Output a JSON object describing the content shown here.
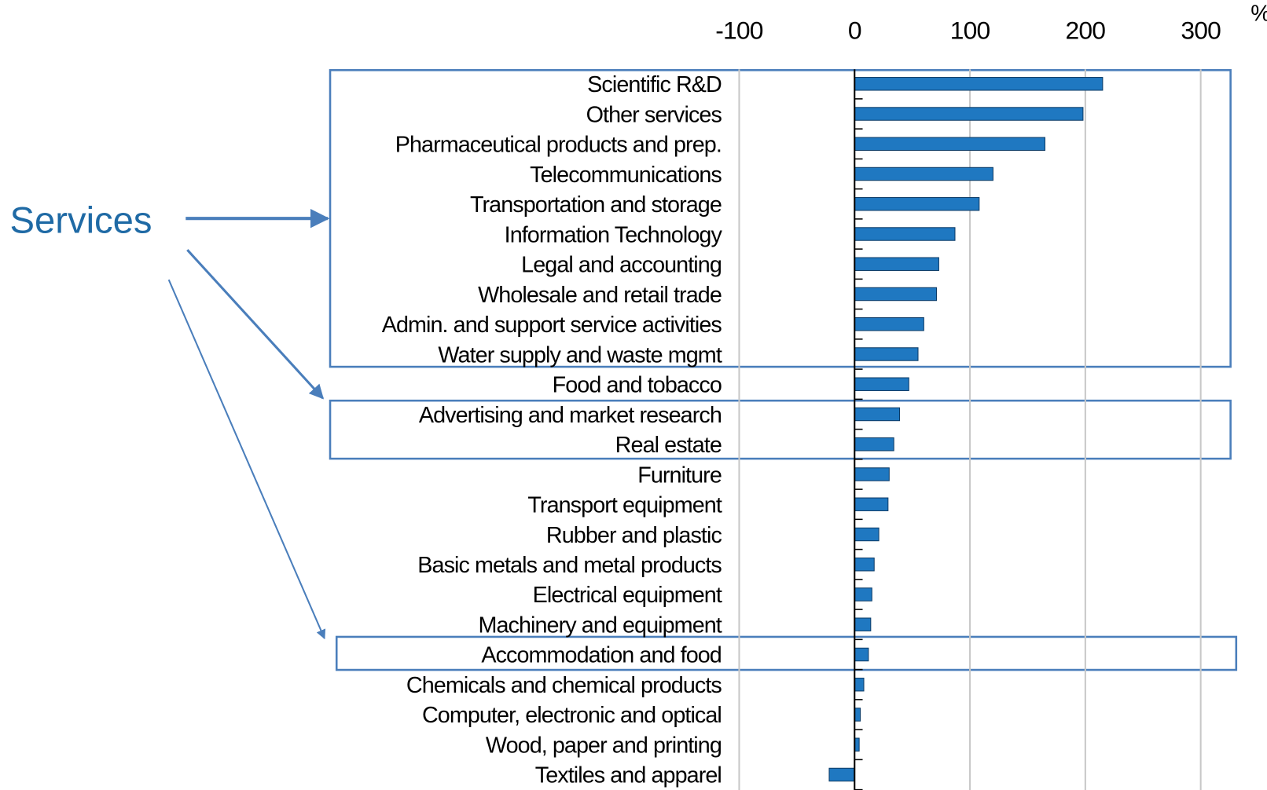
{
  "chart_data": {
    "type": "barh",
    "categories": [
      "Scientific R&D",
      "Other services",
      "Pharmaceutical products and prep.",
      "Telecommunications",
      "Transportation and storage",
      "Information Technology",
      "Legal and accounting",
      "Wholesale and retail trade",
      "Admin. and support service activities",
      "Water supply and waste mgmt",
      "Food and tobacco",
      "Advertising and market research",
      "Real estate",
      "Furniture",
      "Transport equipment",
      "Rubber and plastic",
      "Basic metals and metal products",
      "Electrical equipment",
      "Machinery and equipment",
      "Accommodation and food",
      "Chemicals and chemical products",
      "Computer, electronic and optical",
      "Wood, paper and printing",
      "Textiles and apparel"
    ],
    "values": [
      215,
      198,
      165,
      120,
      108,
      87,
      73,
      71,
      60,
      55,
      47,
      39,
      34,
      30,
      29,
      21,
      17,
      15,
      14,
      12,
      8,
      5,
      4,
      -22
    ],
    "color": "#1f78c1",
    "xlim": [
      -100,
      300
    ],
    "xticks": [
      -100,
      0,
      100,
      200,
      300
    ],
    "grid": true,
    "unit": "%",
    "annotation": "Services"
  }
}
